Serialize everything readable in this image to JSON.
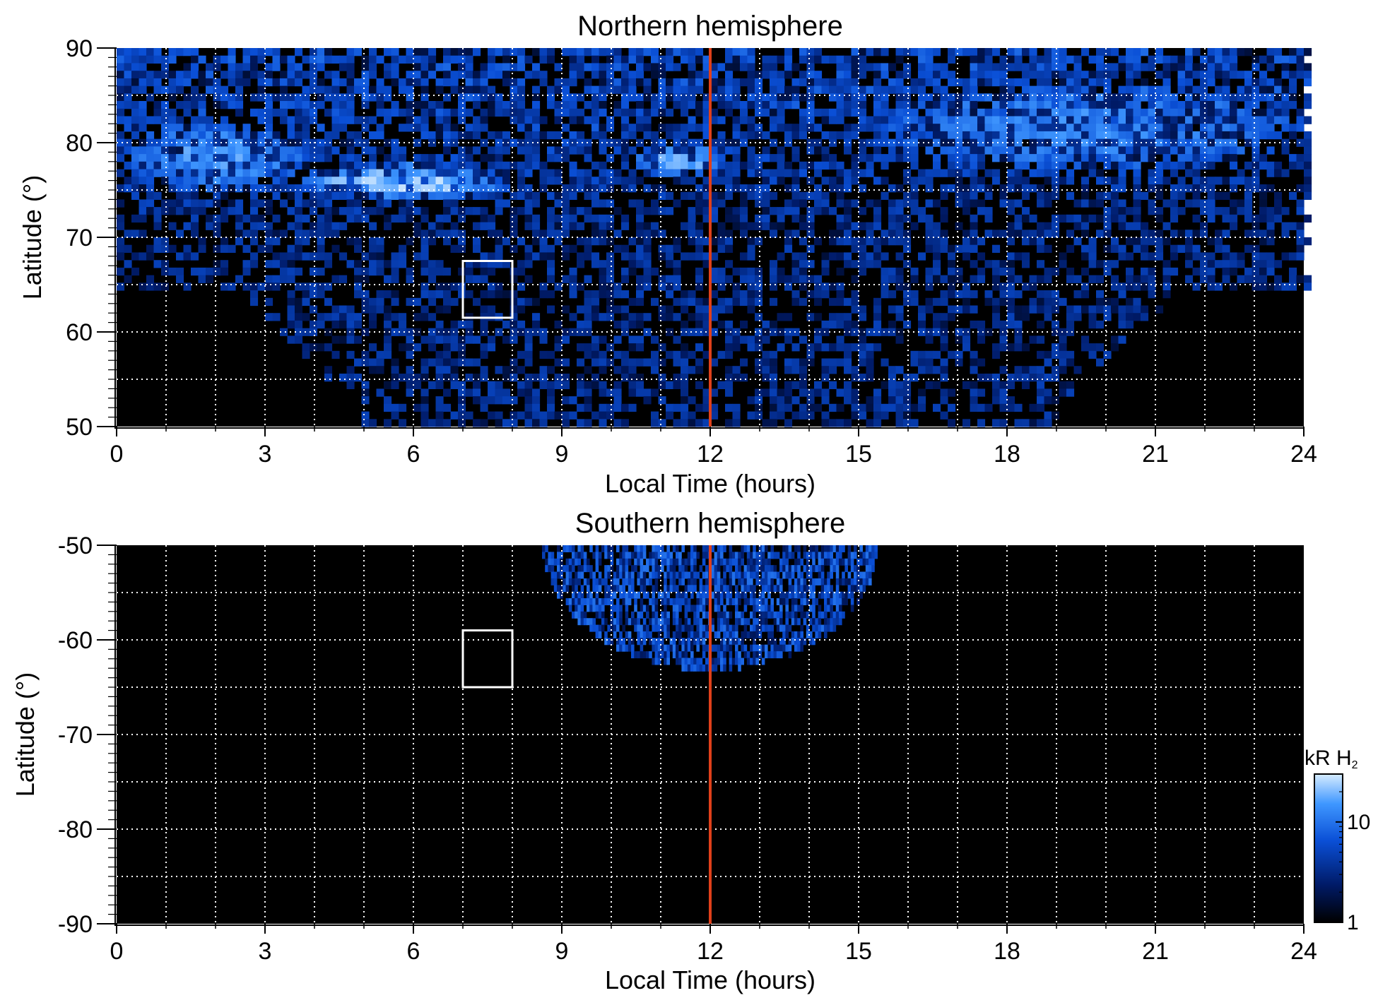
{
  "chart_data": [
    {
      "type": "heatmap",
      "title": "Northern hemisphere",
      "xlabel": "Local Time (hours)",
      "ylabel": "Latitude (°)",
      "xlim": [
        0,
        24
      ],
      "ylim": [
        50,
        90
      ],
      "xticks": [
        "0",
        "3",
        "6",
        "9",
        "12",
        "15",
        "18",
        "21",
        "24"
      ],
      "yticks": [
        "50",
        "60",
        "70",
        "80",
        "90"
      ],
      "grid": true,
      "reference_line": {
        "x": 12,
        "color": "#e0401a"
      },
      "box": {
        "x": [
          7,
          8
        ],
        "y": [
          61.5,
          67.5
        ],
        "color": "#ffffff"
      },
      "emission_bands": [
        {
          "lt": [
            3.5,
            8.0
          ],
          "lat": [
            73.5,
            77.5
          ],
          "intensity": 24
        },
        {
          "lt": [
            10.3,
            12.3
          ],
          "lat": [
            76.0,
            79.5
          ],
          "intensity": 18
        },
        {
          "lt": [
            0.0,
            4.0
          ],
          "lat": [
            74.0,
            82.0
          ],
          "intensity": 12
        },
        {
          "lt": [
            15.0,
            24.0
          ],
          "lat": [
            76.0,
            86.0
          ],
          "intensity": 9
        }
      ],
      "coverage_lower_bound": [
        [
          0,
          64
        ],
        [
          2.5,
          64
        ],
        [
          4.9,
          51
        ],
        [
          5.0,
          50
        ],
        [
          19.0,
          50
        ],
        [
          19.4,
          54
        ],
        [
          21.5,
          64
        ],
        [
          24,
          64
        ]
      ]
    },
    {
      "type": "heatmap",
      "title": "Southern hemisphere",
      "xlabel": "Local Time (hours)",
      "ylabel": "Latitude (°)",
      "xlim": [
        0,
        24
      ],
      "ylim": [
        -90,
        -50
      ],
      "xticks": [
        "0",
        "3",
        "6",
        "9",
        "12",
        "15",
        "18",
        "21",
        "24"
      ],
      "yticks": [
        "-90",
        "-80",
        "-70",
        "-60",
        "-50"
      ],
      "grid": true,
      "reference_line": {
        "x": 12,
        "color": "#e0401a"
      },
      "box": {
        "x": [
          7,
          8
        ],
        "y": [
          -65,
          -59
        ],
        "color": "#ffffff"
      },
      "coverage_region": {
        "lt": [
          8.6,
          15.4
        ],
        "lat_top": -50,
        "lat_bottom_at_center": -63.5
      }
    }
  ],
  "colorbar": {
    "title": "kR H",
    "title_subscript": "2",
    "scale": "log",
    "range": [
      1,
      30
    ],
    "ticks": [
      "1",
      "10"
    ],
    "colors": [
      "#000000",
      "#001a66",
      "#0a4fd6",
      "#3f97ff",
      "#d6ecff"
    ]
  }
}
